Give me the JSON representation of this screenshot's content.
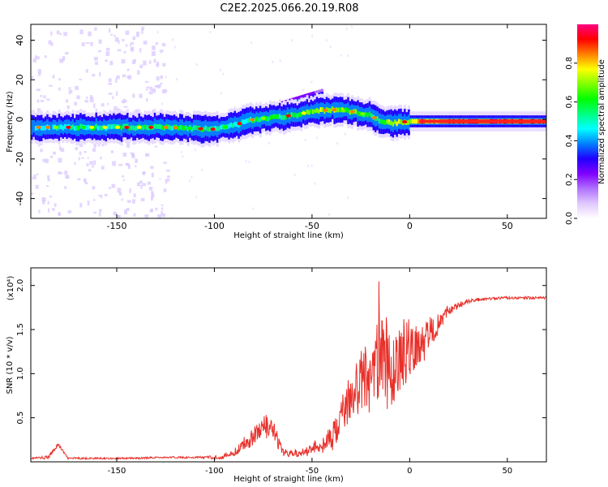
{
  "title": "C2E2.2025.066.20.19.R08",
  "chart_data": [
    {
      "type": "heatmap",
      "xlabel": "Height of straight line (km)",
      "ylabel": "Frequency (Hz)",
      "xlim": [
        -194,
        70
      ],
      "ylim": [
        -50,
        48
      ],
      "xticks": [
        -150,
        -100,
        -50,
        0,
        50
      ],
      "yticks": [
        -40,
        -20,
        0,
        20,
        40
      ],
      "grid": false,
      "colorbar": {
        "label": "Normalized spectral amplitude",
        "range": [
          0,
          1
        ],
        "ticks": [
          "0.0",
          "0.2",
          "0.4",
          "0.6",
          "0.8"
        ],
        "colors": [
          "#ffffff",
          "#e0c8ff",
          "#b070ff",
          "#8000ff",
          "#2000ff",
          "#0080ff",
          "#00ffff",
          "#00ff80",
          "#00ff00",
          "#80ff00",
          "#ffff00",
          "#ff8000",
          "#ff0000",
          "#ff0080"
        ]
      },
      "ridge": {
        "x": [
          -194,
          -175,
          -150,
          -125,
          -100,
          -90,
          -80,
          -70,
          -60,
          -50,
          -40,
          -30,
          -20,
          -15,
          -10,
          0,
          30,
          70
        ],
        "y": [
          -4,
          -4,
          -4,
          -4,
          -5,
          -3,
          0,
          1,
          2,
          4,
          5,
          4,
          2,
          -1,
          -2,
          -1,
          -1,
          -1
        ],
        "amplitude": [
          0.45,
          0.5,
          0.55,
          0.55,
          0.55,
          0.5,
          0.55,
          0.55,
          0.6,
          0.65,
          0.7,
          0.65,
          0.55,
          0.6,
          0.7,
          0.8,
          0.9,
          0.9
        ]
      },
      "upper_branch": {
        "x": [
          -75,
          -65,
          -55,
          -45
        ],
        "y": [
          4,
          7,
          10,
          13
        ],
        "amplitude": [
          0.3,
          0.35,
          0.35,
          0.3
        ]
      }
    },
    {
      "type": "line",
      "xlabel": "Height of straight line (km)",
      "ylabel": "SNR (10 * v/v)",
      "multiplier": "(x10⁴)",
      "xlim": [
        -194,
        70
      ],
      "ylim": [
        0,
        2.2
      ],
      "xticks": [
        -150,
        -100,
        -50,
        0,
        50
      ],
      "yticks": [
        "0.5",
        "1.0",
        "1.5",
        "2.0"
      ],
      "color": "#e8302a",
      "series": [
        {
          "x": [
            -194,
            -185,
            -180,
            -175,
            -160,
            -150,
            -140,
            -130,
            -120,
            -110,
            -100,
            -95,
            -90,
            -85,
            -80,
            -75,
            -70,
            -65,
            -60,
            -55,
            -50,
            -45,
            -40,
            -35,
            -30,
            -25,
            -20,
            -15,
            -12,
            -10,
            -5,
            0,
            5,
            10,
            15,
            20,
            25,
            30,
            35,
            40,
            50,
            60,
            70
          ],
          "y": [
            0.04,
            0.05,
            0.2,
            0.04,
            0.04,
            0.04,
            0.04,
            0.05,
            0.05,
            0.05,
            0.05,
            0.06,
            0.1,
            0.2,
            0.3,
            0.4,
            0.35,
            0.1,
            0.1,
            0.1,
            0.15,
            0.2,
            0.25,
            0.5,
            0.75,
            0.9,
            1.0,
            1.1,
            1.1,
            1.0,
            1.2,
            1.3,
            1.35,
            1.45,
            1.6,
            1.72,
            1.78,
            1.82,
            1.84,
            1.85,
            1.86,
            1.86,
            1.86
          ],
          "noise": [
            0.01,
            0.02,
            0.02,
            0.01,
            0.01,
            0.01,
            0.01,
            0.01,
            0.01,
            0.01,
            0.02,
            0.03,
            0.04,
            0.08,
            0.12,
            0.15,
            0.15,
            0.05,
            0.04,
            0.05,
            0.07,
            0.1,
            0.15,
            0.22,
            0.3,
            0.35,
            0.45,
            0.55,
            0.6,
            0.5,
            0.4,
            0.35,
            0.3,
            0.25,
            0.12,
            0.06,
            0.04,
            0.02,
            0.02,
            0.015,
            0.015,
            0.015,
            0.015
          ]
        }
      ]
    }
  ]
}
